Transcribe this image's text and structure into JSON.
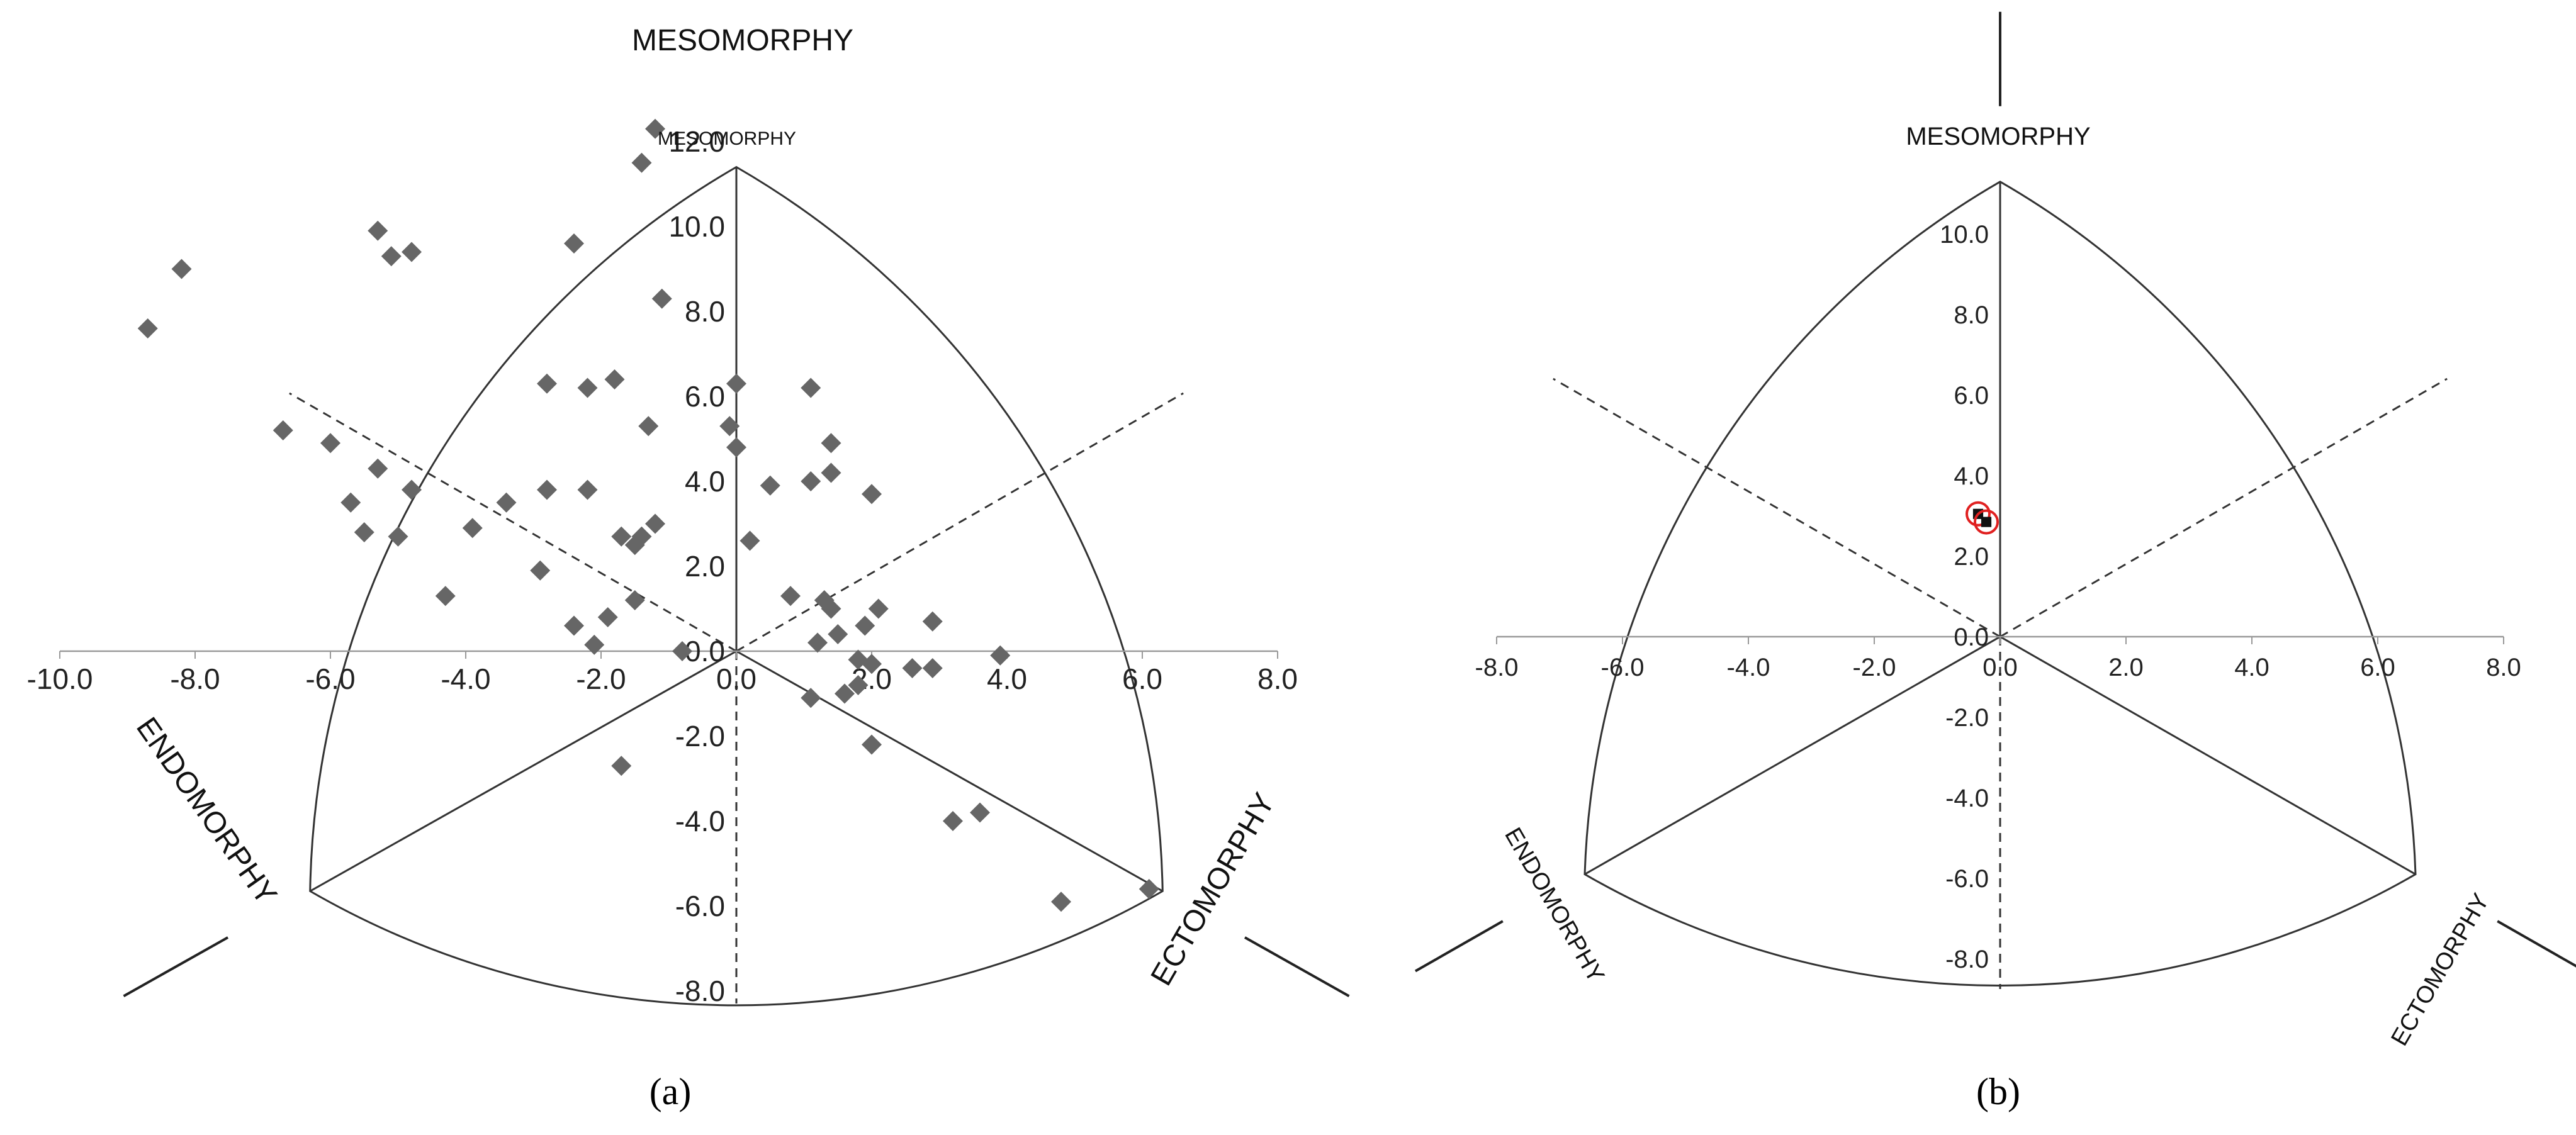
{
  "chart_data": [
    {
      "type": "scatter",
      "panel_label": "a",
      "axis_labels": [
        "MESOMORPHY",
        "ENDOMORPHY",
        "ECTOMORPHY"
      ],
      "inner_label": "MESOMORPHY",
      "xlim": [
        -10,
        8
      ],
      "ylim": [
        -8,
        12
      ],
      "x_ticks": [
        "-10.0",
        "-8.0",
        "-6.0",
        "-4.0",
        "-2.0",
        "0.0",
        "2.0",
        "4.0",
        "6.0",
        "8.0"
      ],
      "y_ticks": [
        "12.0",
        "10.0",
        "8.0",
        "6.0",
        "4.0",
        "2.0",
        "0.0",
        "-2.0",
        "-4.0",
        "-6.0",
        "-8.0"
      ],
      "marker": "diamond",
      "marker_color": "#666666",
      "points": [
        [
          -8.7,
          7.6
        ],
        [
          -8.2,
          9.0
        ],
        [
          -5.3,
          9.9
        ],
        [
          -5.1,
          9.3
        ],
        [
          -4.8,
          9.4
        ],
        [
          -2.4,
          9.6
        ],
        [
          -1.4,
          11.5
        ],
        [
          -1.2,
          12.3
        ],
        [
          -1.1,
          8.3
        ],
        [
          -6.7,
          5.2
        ],
        [
          -6.0,
          4.9
        ],
        [
          -5.3,
          4.3
        ],
        [
          -4.8,
          3.8
        ],
        [
          -5.7,
          3.5
        ],
        [
          -5.5,
          2.8
        ],
        [
          -5.0,
          2.7
        ],
        [
          -3.9,
          2.9
        ],
        [
          -3.4,
          3.5
        ],
        [
          -2.8,
          6.3
        ],
        [
          -2.2,
          6.2
        ],
        [
          -2.8,
          3.8
        ],
        [
          -2.2,
          3.8
        ],
        [
          -1.8,
          6.4
        ],
        [
          -1.3,
          5.3
        ],
        [
          -1.2,
          3.0
        ],
        [
          -2.9,
          1.9
        ],
        [
          -4.3,
          1.3
        ],
        [
          -2.4,
          0.6
        ],
        [
          -1.9,
          0.8
        ],
        [
          -2.1,
          0.15
        ],
        [
          -1.7,
          2.7
        ],
        [
          -1.5,
          2.5
        ],
        [
          -1.4,
          2.7
        ],
        [
          -1.5,
          1.2
        ],
        [
          -0.8,
          0.0
        ],
        [
          -1.7,
          -2.7
        ],
        [
          -0.1,
          5.3
        ],
        [
          0.0,
          6.3
        ],
        [
          0.0,
          4.8
        ],
        [
          0.2,
          2.6
        ],
        [
          0.5,
          3.9
        ],
        [
          1.1,
          4.0
        ],
        [
          1.1,
          6.2
        ],
        [
          1.4,
          4.9
        ],
        [
          1.4,
          4.2
        ],
        [
          2.0,
          3.7
        ],
        [
          0.8,
          1.3
        ],
        [
          1.3,
          1.2
        ],
        [
          1.4,
          1.0
        ],
        [
          1.5,
          0.4
        ],
        [
          1.9,
          0.6
        ],
        [
          2.1,
          1.0
        ],
        [
          1.2,
          0.2
        ],
        [
          1.1,
          -1.1
        ],
        [
          1.8,
          -0.2
        ],
        [
          2.0,
          -0.3
        ],
        [
          2.6,
          -0.4
        ],
        [
          2.9,
          -0.4
        ],
        [
          2.9,
          0.7
        ],
        [
          1.6,
          -1.0
        ],
        [
          1.8,
          -0.8
        ],
        [
          2.0,
          -2.2
        ],
        [
          3.9,
          -0.1
        ],
        [
          3.2,
          -4.0
        ],
        [
          3.6,
          -3.8
        ],
        [
          4.8,
          -5.9
        ],
        [
          6.1,
          -5.6
        ]
      ],
      "caption": "(a)"
    },
    {
      "type": "scatter",
      "panel_label": "b",
      "axis_labels": [
        "MESOMORPHY",
        "ENDOMORPHY",
        "ECTOMORPHY"
      ],
      "xlim": [
        -8,
        8
      ],
      "ylim": [
        -8,
        10
      ],
      "x_ticks": [
        "-8.0",
        "-6.0",
        "-4.0",
        "-2.0",
        "0.0",
        "2.0",
        "4.0",
        "6.0",
        "8.0"
      ],
      "y_ticks": [
        "10.0",
        "8.0",
        "6.0",
        "4.0",
        "2.0",
        "0.0",
        "-2.0",
        "-4.0",
        "-6.0",
        "-8.0"
      ],
      "marker": "circle",
      "marker_color": "#e02020",
      "points": [
        [
          -0.35,
          3.05
        ],
        [
          -0.22,
          2.85
        ]
      ],
      "caption": "(b)"
    }
  ]
}
